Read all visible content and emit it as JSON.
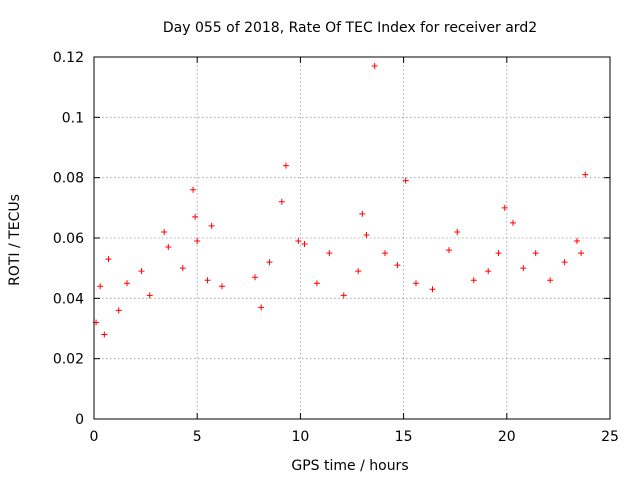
{
  "chart_data": {
    "type": "scatter",
    "title": "Day 055 of 2018, Rate Of TEC Index for receiver ard2",
    "xlabel": "GPS time / hours",
    "ylabel": "ROTI / TECUs",
    "xlim": [
      0,
      25
    ],
    "ylim": [
      0,
      0.12
    ],
    "xticks": [
      0,
      5,
      10,
      15,
      20,
      25
    ],
    "xtick_labels": [
      "0",
      "5",
      "10",
      "15",
      "20",
      "25"
    ],
    "yticks": [
      0,
      0.02,
      0.04,
      0.06,
      0.08,
      0.1,
      0.12
    ],
    "ytick_labels": [
      "0",
      "0.02",
      "0.04",
      "0.06",
      "0.08",
      "0.1",
      "0.12"
    ],
    "grid": true,
    "marker": "+",
    "color": "#ff0000",
    "series": [
      {
        "name": "ROTI",
        "x": [
          0.1,
          0.3,
          0.5,
          0.7,
          1.2,
          1.6,
          2.3,
          2.7,
          3.4,
          3.6,
          4.3,
          4.8,
          4.9,
          5.0,
          5.5,
          5.7,
          6.2,
          7.8,
          8.1,
          8.5,
          9.1,
          9.3,
          9.9,
          10.2,
          10.8,
          11.4,
          12.1,
          12.8,
          13.0,
          13.2,
          13.6,
          14.1,
          14.7,
          15.1,
          15.6,
          16.4,
          17.2,
          17.6,
          18.4,
          19.1,
          19.6,
          19.9,
          20.3,
          20.8,
          21.4,
          22.1,
          22.8,
          23.4,
          23.6,
          23.8
        ],
        "y": [
          0.032,
          0.044,
          0.028,
          0.053,
          0.036,
          0.045,
          0.049,
          0.041,
          0.062,
          0.057,
          0.05,
          0.076,
          0.067,
          0.059,
          0.046,
          0.064,
          0.044,
          0.047,
          0.037,
          0.052,
          0.072,
          0.084,
          0.059,
          0.058,
          0.045,
          0.055,
          0.041,
          0.049,
          0.068,
          0.061,
          0.117,
          0.055,
          0.051,
          0.079,
          0.045,
          0.043,
          0.056,
          0.062,
          0.046,
          0.049,
          0.055,
          0.07,
          0.065,
          0.05,
          0.055,
          0.046,
          0.052,
          0.059,
          0.055,
          0.081
        ]
      }
    ]
  }
}
